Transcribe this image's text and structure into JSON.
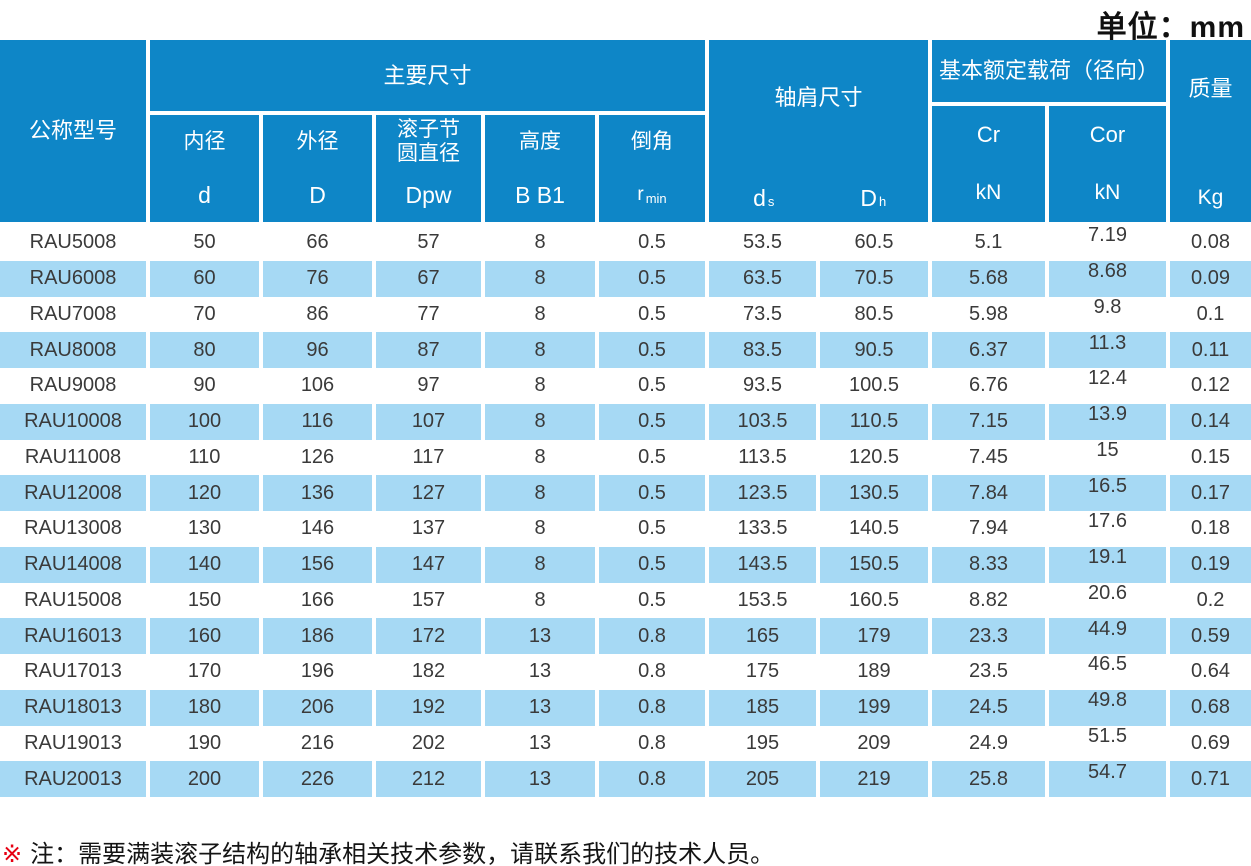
{
  "unit_label": "单位：mm",
  "table": {
    "header": {
      "model": "公称型号",
      "main_dims": "主要尺寸",
      "shoulder": "轴肩尺寸",
      "load": "基本额定载荷（径向）",
      "mass": "质量",
      "cols": {
        "bore_label": "内径",
        "bore_symbol": "d",
        "outer_label": "外径",
        "outer_symbol": "D",
        "pitch_label1": "滚子节",
        "pitch_label2": "圆直径",
        "pitch_symbol": "Dpw",
        "height_label": "高度",
        "height_symbol": "B B1",
        "chamfer_label": "倒角",
        "chamfer_symbol": "r",
        "chamfer_sub": "min",
        "ds_symbol": "d",
        "ds_sub": "s",
        "dh_symbol": "D",
        "dh_sub": "h",
        "cr_label": "Cr",
        "cr_unit": "kN",
        "cor_label": "Cor",
        "cor_unit": "kN",
        "mass_unit": "Kg"
      }
    },
    "rows": [
      [
        "RAU5008",
        "50",
        "66",
        "57",
        "8",
        "0.5",
        "53.5",
        "60.5",
        "5.1",
        "7.19",
        "0.08"
      ],
      [
        "RAU6008",
        "60",
        "76",
        "67",
        "8",
        "0.5",
        "63.5",
        "70.5",
        "5.68",
        "8.68",
        "0.09"
      ],
      [
        "RAU7008",
        "70",
        "86",
        "77",
        "8",
        "0.5",
        "73.5",
        "80.5",
        "5.98",
        "9.8",
        "0.1"
      ],
      [
        "RAU8008",
        "80",
        "96",
        "87",
        "8",
        "0.5",
        "83.5",
        "90.5",
        "6.37",
        "11.3",
        "0.11"
      ],
      [
        "RAU9008",
        "90",
        "106",
        "97",
        "8",
        "0.5",
        "93.5",
        "100.5",
        "6.76",
        "12.4",
        "0.12"
      ],
      [
        "RAU10008",
        "100",
        "116",
        "107",
        "8",
        "0.5",
        "103.5",
        "110.5",
        "7.15",
        "13.9",
        "0.14"
      ],
      [
        "RAU11008",
        "110",
        "126",
        "117",
        "8",
        "0.5",
        "113.5",
        "120.5",
        "7.45",
        "15",
        "0.15"
      ],
      [
        "RAU12008",
        "120",
        "136",
        "127",
        "8",
        "0.5",
        "123.5",
        "130.5",
        "7.84",
        "16.5",
        "0.17"
      ],
      [
        "RAU13008",
        "130",
        "146",
        "137",
        "8",
        "0.5",
        "133.5",
        "140.5",
        "7.94",
        "17.6",
        "0.18"
      ],
      [
        "RAU14008",
        "140",
        "156",
        "147",
        "8",
        "0.5",
        "143.5",
        "150.5",
        "8.33",
        "19.1",
        "0.19"
      ],
      [
        "RAU15008",
        "150",
        "166",
        "157",
        "8",
        "0.5",
        "153.5",
        "160.5",
        "8.82",
        "20.6",
        "0.2"
      ],
      [
        "RAU16013",
        "160",
        "186",
        "172",
        "13",
        "0.8",
        "165",
        "179",
        "23.3",
        "44.9",
        "0.59"
      ],
      [
        "RAU17013",
        "170",
        "196",
        "182",
        "13",
        "0.8",
        "175",
        "189",
        "23.5",
        "46.5",
        "0.64"
      ],
      [
        "RAU18013",
        "180",
        "206",
        "192",
        "13",
        "0.8",
        "185",
        "199",
        "24.5",
        "49.8",
        "0.68"
      ],
      [
        "RAU19013",
        "190",
        "216",
        "202",
        "13",
        "0.8",
        "195",
        "209",
        "24.9",
        "51.5",
        "0.69"
      ],
      [
        "RAU20013",
        "200",
        "226",
        "212",
        "13",
        "0.8",
        "205",
        "219",
        "25.8",
        "54.7",
        "0.71"
      ]
    ]
  },
  "footnote": {
    "marker": "※",
    "text": "注：需要满装滚子结构的轴承相关技术参数，请联系我们的技术人员。"
  },
  "colors": {
    "header_blue": "#0e86c7",
    "row_blue": "#a6d9f4",
    "note_red": "#e60012",
    "body_text": "#3a3a3a"
  }
}
